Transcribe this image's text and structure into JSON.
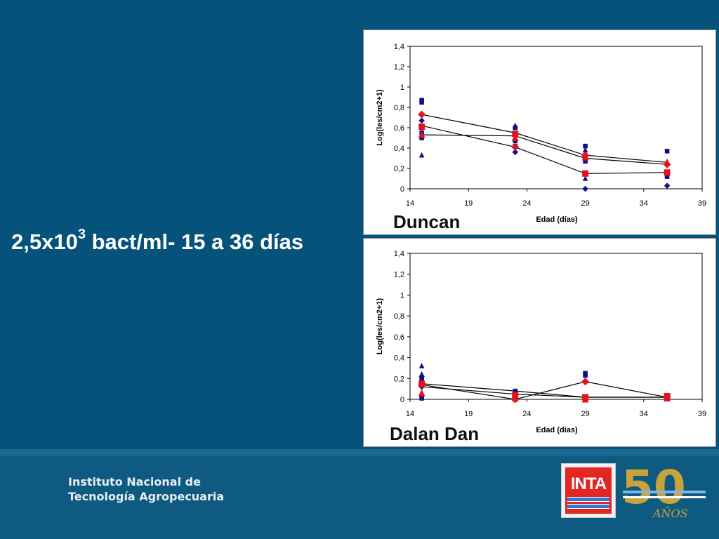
{
  "slide": {
    "title_main": "2,5x10",
    "title_sup": "3",
    "title_rest": " bact/ml- 15 a 36 días"
  },
  "footer": {
    "institution_line1": "Instituto Nacional de",
    "institution_line2": "Tecnología Agropecuaria",
    "logo_text": "INTA",
    "anniversary_number": "50",
    "anniversary_word": "AÑOS"
  },
  "colors": {
    "blue_series": "#0f0f8c",
    "red_series": "#e0141e",
    "background": "#05537a"
  },
  "chart_data": [
    {
      "type": "scatter",
      "series_label": "Duncan",
      "xlabel": "Edad (días)",
      "ylabel": "Log(les/cm2+1)",
      "xlim": [
        14,
        39
      ],
      "ylim": [
        0,
        1.4
      ],
      "x_ticks": [
        14,
        19,
        24,
        29,
        34,
        39
      ],
      "x_tick_labels": [
        "14",
        "19",
        "24",
        "29",
        "34",
        "39"
      ],
      "y_ticks": [
        0,
        0.2,
        0.4,
        0.6,
        0.8,
        1,
        1.2,
        1.4
      ],
      "y_tick_labels": [
        "0",
        "0,2",
        "0,4",
        "0,6",
        "0,8",
        "1",
        "1,2",
        "1,4"
      ],
      "grid": false,
      "lines": [
        {
          "x": [
            15,
            23,
            29,
            36
          ],
          "y": [
            0.73,
            0.55,
            0.33,
            0.26
          ]
        },
        {
          "x": [
            15,
            23,
            29,
            36
          ],
          "y": [
            0.62,
            0.41,
            0.15,
            0.16
          ]
        },
        {
          "x": [
            15,
            23,
            29,
            36
          ],
          "y": [
            0.53,
            0.52,
            0.3,
            0.24
          ]
        }
      ],
      "points": [
        {
          "marker": "square",
          "color": "blue",
          "x": [
            15,
            15,
            15,
            15,
            23,
            23,
            23,
            29,
            29,
            29,
            36,
            36
          ],
          "y": [
            0.87,
            0.85,
            0.55,
            0.5,
            0.6,
            0.47,
            0.42,
            0.42,
            0.3,
            0.27,
            0.37,
            0.12
          ]
        },
        {
          "marker": "triangle",
          "color": "blue",
          "x": [
            15,
            15,
            23,
            29,
            29,
            36
          ],
          "y": [
            0.33,
            0.53,
            0.62,
            0.38,
            0.1,
            0.26
          ]
        },
        {
          "marker": "diamond",
          "color": "blue",
          "x": [
            15,
            15,
            23,
            29,
            36
          ],
          "y": [
            0.67,
            0.6,
            0.36,
            0.0,
            0.03
          ]
        },
        {
          "marker": "diamond",
          "color": "red",
          "x": [
            15,
            23,
            29,
            36
          ],
          "y": [
            0.73,
            0.41,
            0.33,
            0.24
          ]
        },
        {
          "marker": "square",
          "color": "red",
          "x": [
            15,
            23,
            29,
            36
          ],
          "y": [
            0.61,
            0.54,
            0.15,
            0.16
          ]
        },
        {
          "marker": "triangle",
          "color": "red",
          "x": [
            15,
            23,
            29,
            36
          ],
          "y": [
            0.53,
            0.5,
            0.31,
            0.26
          ]
        }
      ]
    },
    {
      "type": "scatter",
      "series_label": "Dalan Dan",
      "xlabel": "Edad (días)",
      "ylabel": "Log(les/cm2+1)",
      "xlim": [
        14,
        39
      ],
      "ylim": [
        0,
        1.4
      ],
      "x_ticks": [
        14,
        19,
        24,
        29,
        34,
        39
      ],
      "x_tick_labels": [
        "14",
        "19",
        "24",
        "29",
        "34",
        "39"
      ],
      "y_ticks": [
        0,
        0.2,
        0.4,
        0.6,
        0.8,
        1,
        1.2,
        1.4
      ],
      "y_tick_labels": [
        "0",
        "0,2",
        "0,4",
        "0,6",
        "0,8",
        "1",
        "1,2",
        "1,4"
      ],
      "grid": false,
      "lines": [
        {
          "x": [
            15,
            23,
            29,
            36
          ],
          "y": [
            0.15,
            0.08,
            0.02,
            0.02
          ]
        },
        {
          "x": [
            15,
            23,
            29,
            36
          ],
          "y": [
            0.14,
            0.0,
            0.17,
            0.02
          ]
        },
        {
          "x": [
            15,
            23,
            29,
            36
          ],
          "y": [
            0.12,
            0.05,
            0.02,
            0.02
          ]
        }
      ],
      "points": [
        {
          "marker": "square",
          "color": "blue",
          "x": [
            15,
            15,
            15,
            23,
            23,
            29,
            29,
            36
          ],
          "y": [
            0.2,
            0.03,
            0.01,
            0.08,
            0.01,
            0.25,
            0.23,
            0.03
          ]
        },
        {
          "marker": "triangle",
          "color": "blue",
          "x": [
            15,
            15,
            23,
            29,
            36
          ],
          "y": [
            0.32,
            0.24,
            0.03,
            0.01,
            0.01
          ]
        },
        {
          "marker": "diamond",
          "color": "blue",
          "x": [
            15,
            15,
            23,
            36
          ],
          "y": [
            0.22,
            0.12,
            0.0,
            0.01
          ]
        },
        {
          "marker": "diamond",
          "color": "red",
          "x": [
            15,
            23,
            29,
            36
          ],
          "y": [
            0.14,
            0.0,
            0.17,
            0.02
          ]
        },
        {
          "marker": "square",
          "color": "red",
          "x": [
            15,
            23,
            29,
            36
          ],
          "y": [
            0.15,
            0.04,
            0.02,
            0.03
          ]
        },
        {
          "marker": "triangle",
          "color": "red",
          "x": [
            15,
            23,
            29,
            36
          ],
          "y": [
            0.06,
            0.01,
            0.0,
            0.01
          ]
        }
      ]
    }
  ]
}
